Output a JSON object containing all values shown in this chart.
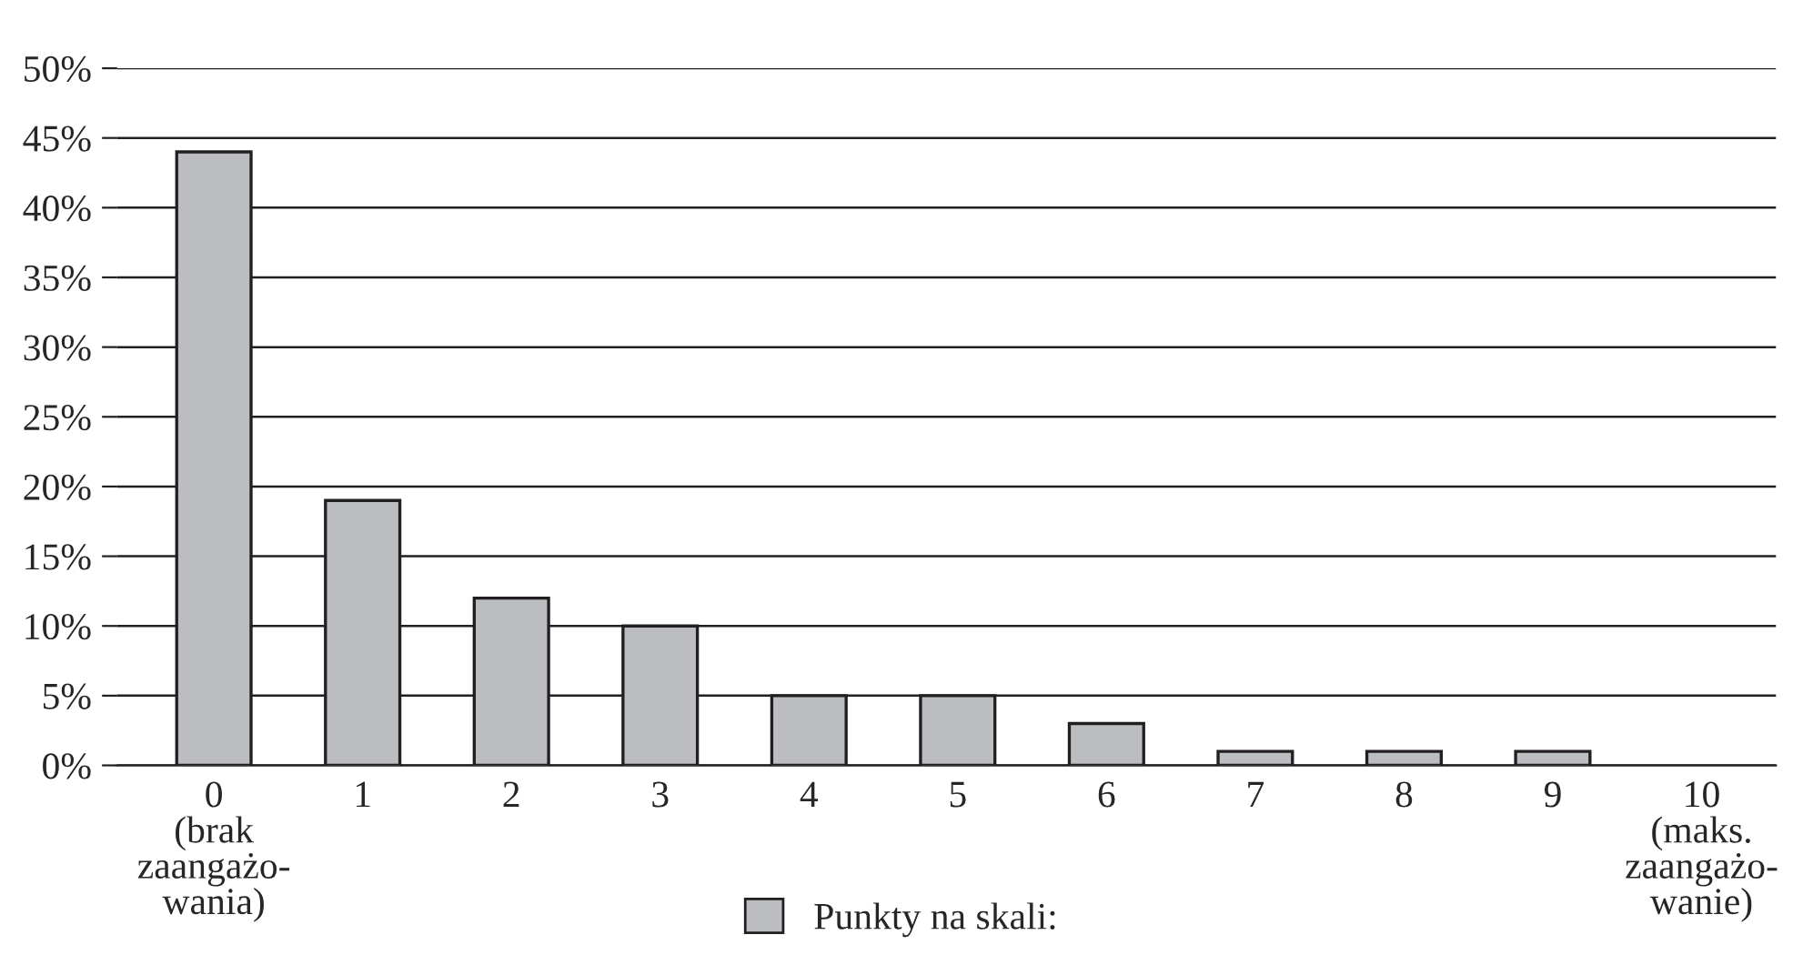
{
  "chart_data": {
    "type": "bar",
    "categories": [
      "0\n(brak\nzaangażo-\nwania)",
      "1",
      "2",
      "3",
      "4",
      "5",
      "6",
      "7",
      "8",
      "9",
      "10\n(maks.\nzaangażo-\nwanie)"
    ],
    "series": [
      {
        "name": "Punkty na skali:",
        "color": "#bcbdc0",
        "values": [
          44,
          19,
          12,
          10,
          5,
          5,
          3,
          1,
          1,
          1,
          null
        ]
      }
    ],
    "ylim": [
      0,
      50
    ],
    "yticks": [
      {
        "value": 0,
        "label": "0%"
      },
      {
        "value": 5,
        "label": "5%"
      },
      {
        "value": 10,
        "label": "10%"
      },
      {
        "value": 15,
        "label": "15%"
      },
      {
        "value": 20,
        "label": "20%"
      },
      {
        "value": 25,
        "label": "25%"
      },
      {
        "value": 30,
        "label": "30%"
      },
      {
        "value": 35,
        "label": "35%"
      },
      {
        "value": 40,
        "label": "40%"
      },
      {
        "value": 45,
        "label": "45%"
      },
      {
        "value": 50,
        "label": "50%"
      }
    ],
    "grid": "y",
    "legend": "bottom"
  }
}
